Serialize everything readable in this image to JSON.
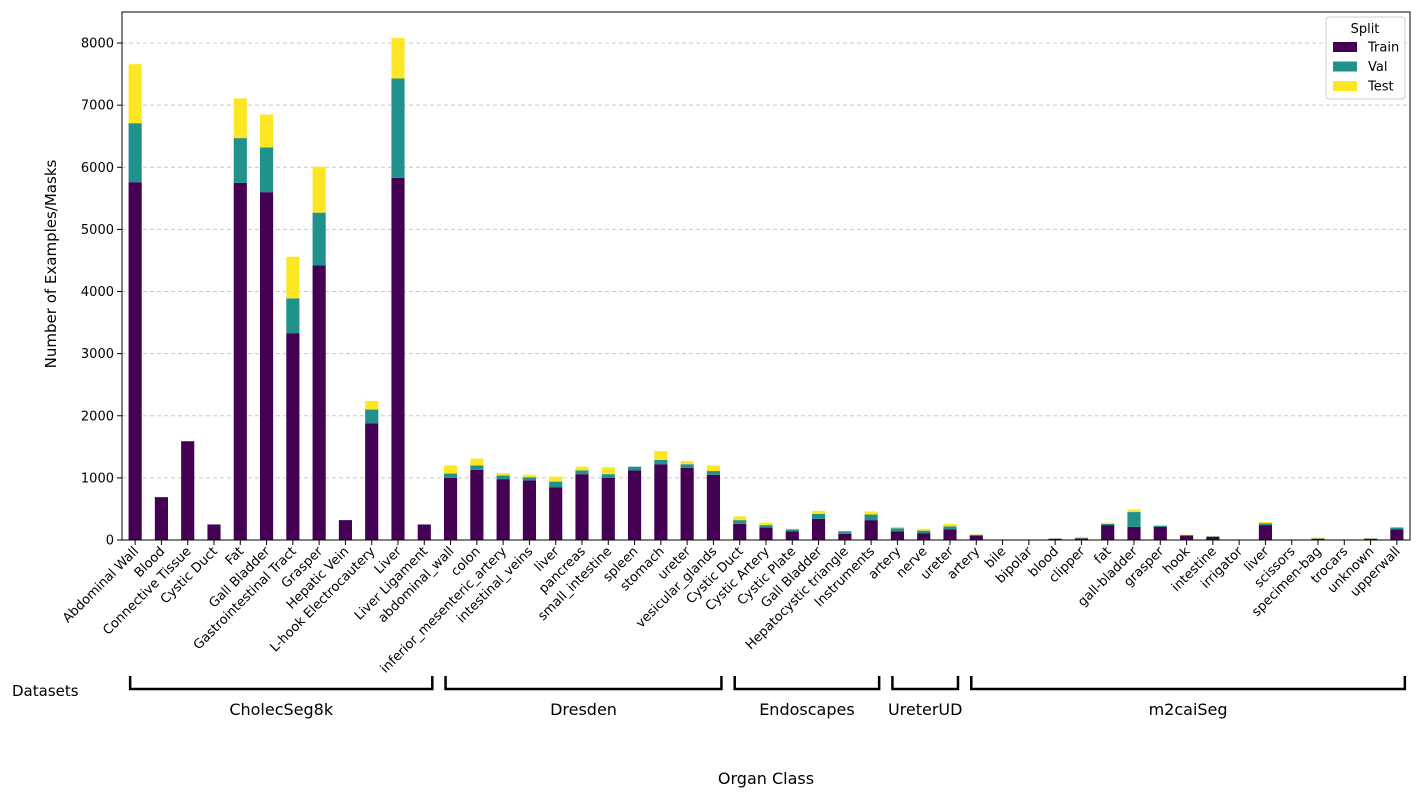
{
  "chart_data": {
    "type": "bar",
    "stacked": true,
    "xlabel": "Organ Class",
    "ylabel": "Number of Examples/Masks",
    "ylim": [
      0,
      8500
    ],
    "yticks": [
      0,
      1000,
      2000,
      3000,
      4000,
      5000,
      6000,
      7000,
      8000
    ],
    "grid": "horizontal dashed",
    "legend": {
      "title": "Split",
      "position": "top-right"
    },
    "groups_label": "Datasets",
    "categories": [
      "Abdominal Wall",
      "Blood",
      "Connective Tissue",
      "Cystic Duct",
      "Fat",
      "Gall Bladder",
      "Gastrointestinal Tract",
      "Grasper",
      "Hepatic Vein",
      "L-hook Electrocautery",
      "Liver",
      "Liver Ligament",
      "abdominal_wall",
      "colon",
      "inferior_mesenteric_artery",
      "intestinal_veins",
      "liver",
      "pancreas",
      "small_intestine",
      "spleen",
      "stomach",
      "ureter",
      "vesicular_glands",
      "Cystic Duct",
      "Cystic Artery",
      "Cystic Plate",
      "Gall Bladder",
      "Hepatocystic triangle",
      "Instruments",
      "artery",
      "nerve",
      "ureter",
      "artery",
      "bile",
      "bipolar",
      "blood",
      "clipper",
      "fat",
      "gall-bladder",
      "grasper",
      "hook",
      "intestine",
      "irrigator",
      "liver",
      "scissors",
      "specimen-bag",
      "trocars",
      "unknown",
      "upperwall"
    ],
    "series": [
      {
        "name": "Train",
        "color": "#440154",
        "values": [
          5760,
          690,
          1590,
          250,
          5750,
          5600,
          3330,
          4420,
          320,
          1880,
          5830,
          250,
          1000,
          1130,
          980,
          960,
          850,
          1060,
          1000,
          1120,
          1220,
          1160,
          1050,
          260,
          200,
          140,
          340,
          100,
          320,
          140,
          110,
          170,
          70,
          5,
          5,
          20,
          25,
          240,
          210,
          210,
          70,
          50,
          5,
          240,
          5,
          20,
          5,
          20,
          170
        ]
      },
      {
        "name": "Val",
        "color": "#21918c",
        "values": [
          950,
          0,
          0,
          0,
          720,
          720,
          560,
          850,
          0,
          220,
          1600,
          0,
          70,
          70,
          60,
          50,
          90,
          60,
          60,
          60,
          70,
          60,
          60,
          60,
          40,
          30,
          80,
          40,
          90,
          50,
          40,
          50,
          15,
          0,
          0,
          5,
          5,
          20,
          240,
          20,
          10,
          10,
          0,
          30,
          0,
          5,
          0,
          5,
          30
        ]
      },
      {
        "name": "Test",
        "color": "#fde725",
        "values": [
          950,
          0,
          0,
          0,
          640,
          530,
          670,
          740,
          0,
          140,
          650,
          0,
          130,
          110,
          40,
          40,
          80,
          60,
          110,
          0,
          140,
          50,
          90,
          60,
          40,
          10,
          50,
          0,
          50,
          20,
          30,
          40,
          5,
          0,
          0,
          0,
          20,
          20,
          40,
          10,
          5,
          5,
          0,
          20,
          0,
          15,
          0,
          5,
          10
        ]
      }
    ],
    "groups": [
      {
        "name": "CholecSeg8k",
        "start": 0,
        "end": 11
      },
      {
        "name": "Dresden",
        "start": 12,
        "end": 22
      },
      {
        "name": "Endoscapes",
        "start": 23,
        "end": 28
      },
      {
        "name": "UreterUD",
        "start": 29,
        "end": 31
      },
      {
        "name": "m2caiSeg",
        "start": 32,
        "end": 48
      }
    ]
  }
}
